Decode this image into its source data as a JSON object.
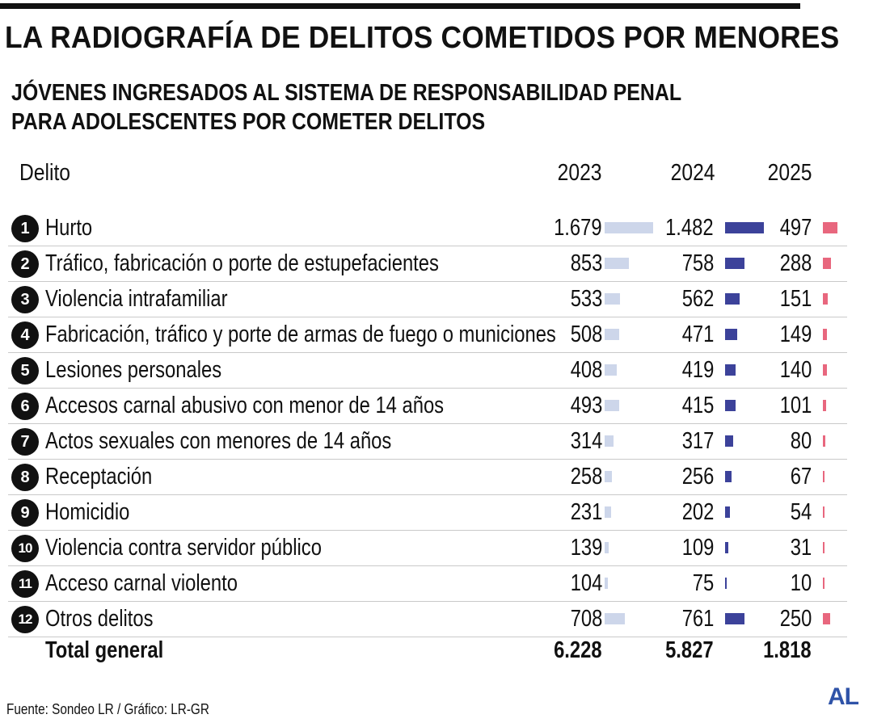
{
  "title": "LA RADIOGRAFÍA DE DELITOS COMETIDOS POR MENORES",
  "subtitle_line1": "JÓVENES INGRESADOS AL SISTEMA DE RESPONSABILIDAD PENAL",
  "subtitle_line2": "PARA ADOLESCENTES POR COMETER DELITOS",
  "source": "Fuente: Sondeo LR / Gráfico: LR-GR",
  "logo": "AL",
  "colors": {
    "bar_2023": "#cdd6ea",
    "bar_2024": "#3c429a",
    "bar_2025": "#e8677e"
  },
  "chart_data": {
    "type": "table",
    "columns": [
      "Delito",
      "2023",
      "2024",
      "2025"
    ],
    "rows": [
      {
        "rank": "1",
        "delito": "Hurto",
        "v2023": 1679,
        "v2024": 1482,
        "v2025": 497,
        "t2023": "1.679",
        "t2024": "1.482",
        "t2025": "497"
      },
      {
        "rank": "2",
        "delito": "Tráfico, fabricación o porte de estupefacientes",
        "v2023": 853,
        "v2024": 758,
        "v2025": 288,
        "t2023": "853",
        "t2024": "758",
        "t2025": "288"
      },
      {
        "rank": "3",
        "delito": "Violencia intrafamiliar",
        "v2023": 533,
        "v2024": 562,
        "v2025": 151,
        "t2023": "533",
        "t2024": "562",
        "t2025": "151"
      },
      {
        "rank": "4",
        "delito": "Fabricación, tráfico y porte de armas de fuego o municiones",
        "v2023": 508,
        "v2024": 471,
        "v2025": 149,
        "t2023": "508",
        "t2024": "471",
        "t2025": "149"
      },
      {
        "rank": "5",
        "delito": "Lesiones personales",
        "v2023": 408,
        "v2024": 419,
        "v2025": 140,
        "t2023": "408",
        "t2024": "419",
        "t2025": "140"
      },
      {
        "rank": "6",
        "delito": "Accesos carnal abusivo con menor de 14 años",
        "v2023": 493,
        "v2024": 415,
        "v2025": 101,
        "t2023": "493",
        "t2024": "415",
        "t2025": "101"
      },
      {
        "rank": "7",
        "delito": "Actos sexuales con menores de 14 años",
        "v2023": 314,
        "v2024": 317,
        "v2025": 80,
        "t2023": "314",
        "t2024": "317",
        "t2025": "80"
      },
      {
        "rank": "8",
        "delito": "Receptación",
        "v2023": 258,
        "v2024": 256,
        "v2025": 67,
        "t2023": "258",
        "t2024": "256",
        "t2025": "67"
      },
      {
        "rank": "9",
        "delito": "Homicidio",
        "v2023": 231,
        "v2024": 202,
        "v2025": 54,
        "t2023": "231",
        "t2024": "202",
        "t2025": "54"
      },
      {
        "rank": "10",
        "delito": "Violencia contra servidor público",
        "v2023": 139,
        "v2024": 109,
        "v2025": 31,
        "t2023": "139",
        "t2024": "109",
        "t2025": "31"
      },
      {
        "rank": "11",
        "delito": "Acceso carnal violento",
        "v2023": 104,
        "v2024": 75,
        "v2025": 10,
        "t2023": "104",
        "t2024": "75",
        "t2025": "10"
      },
      {
        "rank": "12",
        "delito": "Otros delitos",
        "v2023": 708,
        "v2024": 761,
        "v2025": 250,
        "t2023": "708",
        "t2024": "761",
        "t2025": "250"
      }
    ],
    "total": {
      "label": "Total general",
      "t2023": "6.228",
      "t2024": "5.827",
      "t2025": "1.818"
    }
  }
}
